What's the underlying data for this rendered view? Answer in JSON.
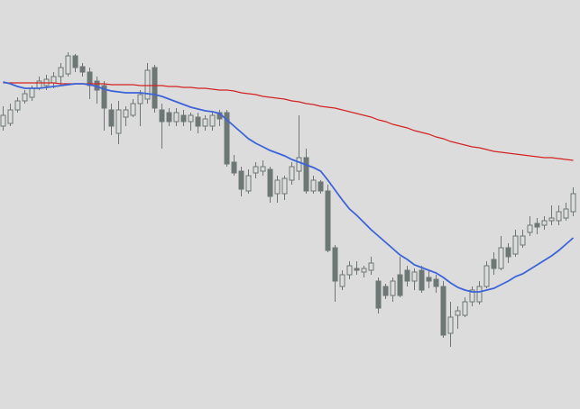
{
  "chart_data": {
    "type": "candlestick",
    "ylim": [
      0,
      454
    ],
    "up_color": "#dcdcdc",
    "down_color": "#6d7775",
    "outline_color": "#6d7775",
    "open": [
      314,
      317,
      332,
      342,
      346,
      356,
      359,
      362,
      369,
      372,
      392,
      380,
      374,
      364,
      359,
      332,
      306,
      324,
      326,
      339,
      344,
      379,
      332,
      329,
      319,
      326,
      319,
      324,
      314,
      314,
      329,
      329,
      274,
      264,
      242,
      262,
      264,
      266,
      239,
      239,
      254,
      264,
      279,
      242,
      252,
      242,
      179,
      136,
      149,
      156,
      152,
      154,
      142,
      136,
      126,
      149,
      154,
      142,
      154,
      146,
      144,
      136,
      84,
      104,
      104,
      119,
      119,
      136,
      166,
      156,
      179,
      172,
      182,
      196,
      206,
      204,
      209,
      209,
      212,
      219
    ],
    "high": [
      336,
      339,
      346,
      354,
      359,
      369,
      371,
      374,
      384,
      396,
      394,
      384,
      379,
      369,
      364,
      339,
      342,
      336,
      344,
      354,
      384,
      382,
      339,
      334,
      334,
      332,
      329,
      329,
      326,
      329,
      332,
      332,
      282,
      269,
      266,
      274,
      276,
      269,
      259,
      259,
      274,
      326,
      289,
      259,
      254,
      249,
      182,
      154,
      164,
      164,
      159,
      169,
      146,
      139,
      146,
      169,
      159,
      156,
      159,
      154,
      149,
      142,
      119,
      114,
      124,
      136,
      142,
      164,
      174,
      192,
      184,
      199,
      199,
      214,
      212,
      214,
      226,
      226,
      229,
      246
    ],
    "low": [
      309,
      314,
      329,
      339,
      342,
      354,
      354,
      356,
      359,
      369,
      374,
      369,
      344,
      339,
      309,
      304,
      294,
      314,
      324,
      314,
      339,
      329,
      289,
      314,
      314,
      314,
      309,
      306,
      309,
      309,
      314,
      269,
      259,
      236,
      239,
      256,
      259,
      229,
      229,
      232,
      249,
      254,
      239,
      239,
      239,
      174,
      119,
      132,
      144,
      149,
      146,
      149,
      106,
      122,
      119,
      124,
      136,
      132,
      129,
      134,
      129,
      79,
      69,
      89,
      102,
      114,
      116,
      134,
      149,
      154,
      162,
      169,
      179,
      192,
      194,
      199,
      204,
      204,
      209,
      214
    ],
    "close": [
      326,
      332,
      342,
      350,
      356,
      364,
      366,
      369,
      379,
      392,
      379,
      374,
      359,
      354,
      334,
      314,
      332,
      332,
      339,
      349,
      376,
      334,
      319,
      319,
      329,
      319,
      326,
      314,
      322,
      326,
      322,
      272,
      262,
      244,
      259,
      269,
      269,
      236,
      254,
      256,
      269,
      279,
      242,
      254,
      242,
      176,
      142,
      149,
      159,
      154,
      156,
      162,
      112,
      126,
      142,
      126,
      142,
      152,
      132,
      142,
      136,
      82,
      102,
      109,
      119,
      132,
      136,
      159,
      156,
      179,
      169,
      192,
      192,
      204,
      202,
      209,
      212,
      219,
      222,
      239
    ],
    "lines": [
      {
        "color": "#d42222",
        "values": [
          362,
          362,
          362,
          362,
          362,
          362,
          362,
          362,
          361,
          361,
          361,
          361,
          361,
          361,
          361,
          360,
          360,
          360,
          360,
          359,
          359,
          359,
          359,
          358,
          358,
          357,
          357,
          356,
          356,
          355,
          354,
          354,
          353,
          351,
          350,
          349,
          347,
          346,
          345,
          344,
          342,
          341,
          339,
          338,
          336,
          335,
          334,
          332,
          330,
          328,
          326,
          324,
          321,
          319,
          316,
          314,
          312,
          309,
          307,
          305,
          302,
          300,
          297,
          295,
          293,
          291,
          290,
          288,
          286,
          285,
          284,
          283,
          282,
          281,
          280,
          279,
          279,
          278,
          277,
          276
        ]
      },
      {
        "color": "#3d63d9",
        "values": [
          363,
          361,
          358,
          356,
          356,
          356,
          357,
          358,
          359,
          360,
          361,
          361,
          360,
          358,
          355,
          353,
          352,
          351,
          351,
          351,
          350,
          349,
          347,
          344,
          341,
          338,
          335,
          333,
          331,
          330,
          328,
          321,
          314,
          307,
          300,
          295,
          291,
          287,
          284,
          281,
          277,
          274,
          271,
          268,
          264,
          254,
          243,
          232,
          222,
          215,
          207,
          199,
          192,
          185,
          178,
          171,
          166,
          160,
          157,
          154,
          151,
          146,
          140,
          135,
          132,
          130,
          130,
          132,
          134,
          138,
          142,
          147,
          150,
          155,
          160,
          165,
          170,
          176,
          183,
          190
        ]
      }
    ]
  }
}
